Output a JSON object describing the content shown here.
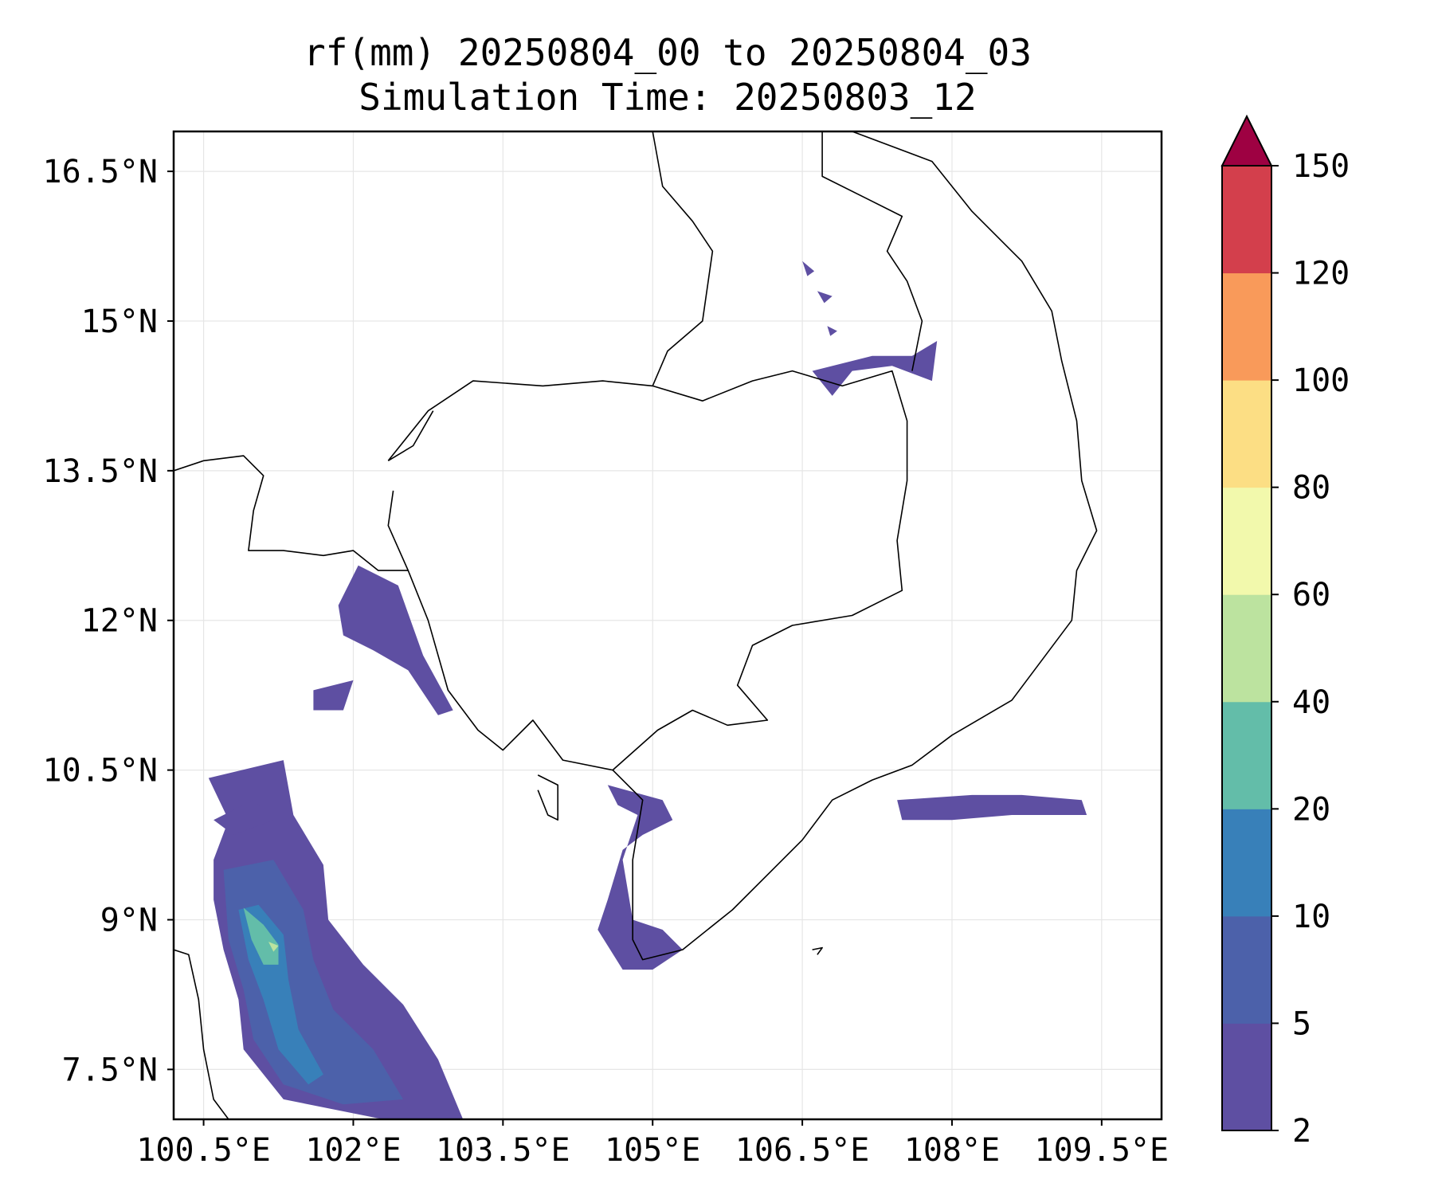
{
  "title": {
    "line1": "rf(mm) 20250804_00 to 20250804_03",
    "line2": "Simulation Time: 20250803_12"
  },
  "map": {
    "lon_range": [
      100.2,
      110.1
    ],
    "lat_range": [
      7.0,
      16.9
    ],
    "x_ticks": [
      {
        "value": 100.5,
        "label": "100.5°E"
      },
      {
        "value": 102.0,
        "label": "102°E"
      },
      {
        "value": 103.5,
        "label": "103.5°E"
      },
      {
        "value": 105.0,
        "label": "105°E"
      },
      {
        "value": 106.5,
        "label": "106.5°E"
      },
      {
        "value": 108.0,
        "label": "108°E"
      },
      {
        "value": 109.5,
        "label": "109.5°E"
      }
    ],
    "y_ticks": [
      {
        "value": 16.5,
        "label": "16.5°N"
      },
      {
        "value": 15.0,
        "label": "15°N"
      },
      {
        "value": 13.5,
        "label": "13.5°N"
      },
      {
        "value": 12.0,
        "label": "12°N"
      },
      {
        "value": 10.5,
        "label": "10.5°N"
      },
      {
        "value": 9.0,
        "label": "9°N"
      },
      {
        "value": 7.5,
        "label": "7.5°N"
      }
    ],
    "gridlines": true
  },
  "colorbar": {
    "levels": [
      {
        "value": 2,
        "label": "2"
      },
      {
        "value": 5,
        "label": "5"
      },
      {
        "value": 10,
        "label": "10"
      },
      {
        "value": 20,
        "label": "20"
      },
      {
        "value": 40,
        "label": "40"
      },
      {
        "value": 60,
        "label": "60"
      },
      {
        "value": 80,
        "label": "80"
      },
      {
        "value": 100,
        "label": "100"
      },
      {
        "value": 120,
        "label": "120"
      },
      {
        "value": 150,
        "label": "150"
      }
    ],
    "colors": [
      "#5e4fa2",
      "#4c61aa",
      "#3880b9",
      "#63bda9",
      "#bce39f",
      "#f2f9ac",
      "#fcde84",
      "#f99a5a",
      "#d33f4c"
    ],
    "extend_color": "#9e0142",
    "extend": "max"
  },
  "rain_areas": [
    {
      "name": "rain-gulf-of-thailand-band",
      "class": 0,
      "points": [
        [
          100.55,
          10.42
        ],
        [
          101.3,
          10.6
        ],
        [
          101.4,
          10.05
        ],
        [
          101.7,
          9.55
        ],
        [
          101.75,
          9.0
        ],
        [
          102.1,
          8.55
        ],
        [
          102.5,
          8.15
        ],
        [
          102.85,
          7.6
        ],
        [
          103.1,
          7.0
        ],
        [
          102.3,
          7.0
        ],
        [
          101.3,
          7.2
        ],
        [
          100.9,
          7.7
        ],
        [
          100.85,
          8.2
        ],
        [
          100.7,
          8.7
        ],
        [
          100.6,
          9.2
        ],
        [
          100.6,
          9.6
        ],
        [
          100.75,
          10.0
        ]
      ]
    },
    {
      "name": "rain-gulf-core",
      "class": 1,
      "points": [
        [
          100.7,
          9.5
        ],
        [
          101.2,
          9.6
        ],
        [
          101.5,
          9.1
        ],
        [
          101.6,
          8.6
        ],
        [
          101.8,
          8.1
        ],
        [
          102.2,
          7.7
        ],
        [
          102.5,
          7.2
        ],
        [
          101.9,
          7.15
        ],
        [
          101.3,
          7.35
        ],
        [
          101.0,
          7.8
        ],
        [
          100.9,
          8.3
        ],
        [
          100.75,
          8.8
        ]
      ]
    },
    {
      "name": "rain-gulf-heavy",
      "class": 2,
      "points": [
        [
          100.85,
          9.1
        ],
        [
          101.05,
          9.15
        ],
        [
          101.3,
          8.85
        ],
        [
          101.35,
          8.4
        ],
        [
          101.45,
          7.9
        ],
        [
          101.7,
          7.45
        ],
        [
          101.55,
          7.35
        ],
        [
          101.25,
          7.7
        ],
        [
          101.1,
          8.2
        ],
        [
          100.95,
          8.6
        ]
      ]
    },
    {
      "name": "rain-gulf-peak",
      "class": 3,
      "points": [
        [
          100.9,
          9.12
        ],
        [
          101.1,
          8.95
        ],
        [
          101.25,
          8.75
        ],
        [
          101.25,
          8.55
        ],
        [
          101.1,
          8.55
        ],
        [
          100.98,
          8.8
        ]
      ]
    },
    {
      "name": "rain-gulf-max",
      "class": 4,
      "points": [
        [
          101.15,
          8.78
        ],
        [
          101.25,
          8.74
        ],
        [
          101.2,
          8.68
        ]
      ]
    },
    {
      "name": "rain-koh-kong-coast",
      "class": 0,
      "points": [
        [
          101.85,
          12.15
        ],
        [
          102.05,
          12.55
        ],
        [
          102.45,
          12.35
        ],
        [
          102.7,
          11.65
        ],
        [
          103.0,
          11.1
        ],
        [
          102.85,
          11.05
        ],
        [
          102.55,
          11.5
        ],
        [
          102.2,
          11.7
        ],
        [
          101.9,
          11.85
        ]
      ]
    },
    {
      "name": "rain-kampot-coast",
      "class": 0,
      "points": [
        [
          104.55,
          10.35
        ],
        [
          105.1,
          10.2
        ],
        [
          105.2,
          10.0
        ],
        [
          104.9,
          9.85
        ],
        [
          104.7,
          9.7
        ],
        [
          104.55,
          9.2
        ],
        [
          104.45,
          8.9
        ],
        [
          104.7,
          8.5
        ],
        [
          105.0,
          8.5
        ],
        [
          105.3,
          8.7
        ],
        [
          105.1,
          8.9
        ],
        [
          104.8,
          9.0
        ],
        [
          104.7,
          9.6
        ],
        [
          104.85,
          10.05
        ],
        [
          104.65,
          10.15
        ]
      ]
    },
    {
      "name": "rain-vietnam-offshore",
      "class": 0,
      "points": [
        [
          107.45,
          10.2
        ],
        [
          108.2,
          10.25
        ],
        [
          108.7,
          10.25
        ],
        [
          109.3,
          10.2
        ],
        [
          109.35,
          10.05
        ],
        [
          108.6,
          10.05
        ],
        [
          108.0,
          10.0
        ],
        [
          107.5,
          10.0
        ]
      ]
    },
    {
      "name": "rain-laos-border",
      "class": 0,
      "points": [
        [
          106.6,
          14.5
        ],
        [
          107.2,
          14.65
        ],
        [
          107.6,
          14.65
        ],
        [
          107.85,
          14.8
        ],
        [
          107.8,
          14.4
        ],
        [
          107.4,
          14.55
        ],
        [
          107.0,
          14.5
        ],
        [
          106.8,
          14.25
        ]
      ]
    },
    {
      "name": "rain-north-speck-1",
      "class": 0,
      "points": [
        [
          106.5,
          15.6
        ],
        [
          106.62,
          15.5
        ],
        [
          106.55,
          15.45
        ]
      ]
    },
    {
      "name": "rain-north-speck-2",
      "class": 0,
      "points": [
        [
          106.65,
          15.3
        ],
        [
          106.8,
          15.25
        ],
        [
          106.72,
          15.18
        ]
      ]
    },
    {
      "name": "rain-north-speck-3",
      "class": 0,
      "points": [
        [
          106.75,
          14.95
        ],
        [
          106.85,
          14.9
        ],
        [
          106.78,
          14.85
        ]
      ]
    },
    {
      "name": "rain-gulf-west-cell",
      "class": 0,
      "points": [
        [
          100.6,
          10.0
        ],
        [
          101.0,
          10.2
        ],
        [
          101.2,
          10.0
        ],
        [
          100.8,
          9.85
        ]
      ]
    },
    {
      "name": "rain-gulf-north-cell",
      "class": 0,
      "points": [
        [
          101.6,
          11.3
        ],
        [
          102.0,
          11.4
        ],
        [
          101.9,
          11.1
        ],
        [
          101.6,
          11.1
        ]
      ]
    }
  ],
  "boundaries": [
    {
      "name": "boundary-cambodia",
      "points": [
        [
          102.35,
          13.6
        ],
        [
          102.75,
          14.1
        ],
        [
          103.2,
          14.4
        ],
        [
          103.9,
          14.35
        ],
        [
          104.5,
          14.4
        ],
        [
          105.0,
          14.35
        ],
        [
          105.5,
          14.2
        ],
        [
          106.0,
          14.4
        ],
        [
          106.4,
          14.5
        ],
        [
          106.9,
          14.35
        ],
        [
          107.4,
          14.5
        ],
        [
          107.55,
          14.0
        ],
        [
          107.55,
          13.4
        ],
        [
          107.45,
          12.8
        ],
        [
          107.5,
          12.3
        ],
        [
          107.0,
          12.05
        ],
        [
          106.4,
          11.95
        ],
        [
          106.0,
          11.75
        ],
        [
          105.85,
          11.35
        ],
        [
          106.15,
          11.0
        ],
        [
          105.75,
          10.95
        ],
        [
          105.4,
          11.1
        ],
        [
          105.05,
          10.9
        ],
        [
          104.6,
          10.5
        ],
        [
          104.1,
          10.6
        ],
        [
          103.8,
          11.0
        ],
        [
          103.5,
          10.7
        ],
        [
          103.25,
          10.9
        ],
        [
          102.95,
          11.3
        ],
        [
          102.75,
          12.0
        ],
        [
          102.55,
          12.5
        ],
        [
          102.35,
          12.95
        ],
        [
          102.4,
          13.3
        ]
      ]
    },
    {
      "name": "boundary-laos-cambodia",
      "points": [
        [
          105.0,
          14.35
        ],
        [
          105.15,
          14.7
        ],
        [
          105.5,
          15.0
        ],
        [
          105.6,
          15.7
        ],
        [
          105.4,
          16.0
        ],
        [
          105.1,
          16.35
        ],
        [
          105.0,
          16.9
        ]
      ]
    },
    {
      "name": "boundary-laos-vietnam",
      "points": [
        [
          106.7,
          16.9
        ],
        [
          106.7,
          16.45
        ],
        [
          107.2,
          16.2
        ],
        [
          107.5,
          16.05
        ],
        [
          107.35,
          15.7
        ],
        [
          107.55,
          15.4
        ],
        [
          107.7,
          15.0
        ],
        [
          107.6,
          14.5
        ]
      ]
    },
    {
      "name": "boundary-vietnam-coast",
      "points": [
        [
          107.0,
          16.9
        ],
        [
          107.8,
          16.6
        ],
        [
          108.2,
          16.1
        ],
        [
          108.7,
          15.6
        ],
        [
          109.0,
          15.1
        ],
        [
          109.1,
          14.6
        ],
        [
          109.25,
          14.0
        ],
        [
          109.3,
          13.4
        ],
        [
          109.45,
          12.9
        ],
        [
          109.25,
          12.5
        ],
        [
          109.2,
          12.0
        ],
        [
          108.9,
          11.6
        ],
        [
          108.6,
          11.2
        ],
        [
          108.0,
          10.85
        ],
        [
          107.6,
          10.55
        ],
        [
          107.2,
          10.4
        ],
        [
          106.8,
          10.2
        ],
        [
          106.5,
          9.8
        ],
        [
          106.2,
          9.5
        ],
        [
          105.8,
          9.1
        ],
        [
          105.3,
          8.7
        ],
        [
          104.9,
          8.6
        ],
        [
          104.8,
          8.8
        ],
        [
          104.8,
          9.6
        ],
        [
          104.9,
          10.2
        ],
        [
          104.6,
          10.5
        ]
      ]
    },
    {
      "name": "boundary-thailand-west",
      "points": [
        [
          100.2,
          13.5
        ],
        [
          100.5,
          13.6
        ],
        [
          100.9,
          13.65
        ],
        [
          101.1,
          13.45
        ],
        [
          101.0,
          13.1
        ],
        [
          100.95,
          12.7
        ],
        [
          101.3,
          12.7
        ],
        [
          101.7,
          12.65
        ],
        [
          102.0,
          12.7
        ],
        [
          102.25,
          12.5
        ],
        [
          102.55,
          12.5
        ]
      ]
    },
    {
      "name": "boundary-thailand-cambodia-north",
      "points": [
        [
          102.35,
          13.6
        ],
        [
          102.6,
          13.75
        ],
        [
          102.8,
          14.1
        ]
      ]
    },
    {
      "name": "boundary-peninsula-west",
      "points": [
        [
          100.2,
          8.7
        ],
        [
          100.35,
          8.65
        ],
        [
          100.45,
          8.2
        ],
        [
          100.5,
          7.7
        ],
        [
          100.6,
          7.2
        ],
        [
          100.75,
          7.0
        ]
      ]
    },
    {
      "name": "boundary-phu-quoc",
      "points": [
        [
          103.85,
          10.45
        ],
        [
          104.05,
          10.35
        ],
        [
          104.05,
          10.0
        ],
        [
          103.95,
          10.05
        ],
        [
          103.85,
          10.3
        ]
      ]
    },
    {
      "name": "boundary-con-son",
      "points": [
        [
          106.6,
          8.7
        ],
        [
          106.7,
          8.72
        ],
        [
          106.65,
          8.65
        ]
      ]
    }
  ]
}
